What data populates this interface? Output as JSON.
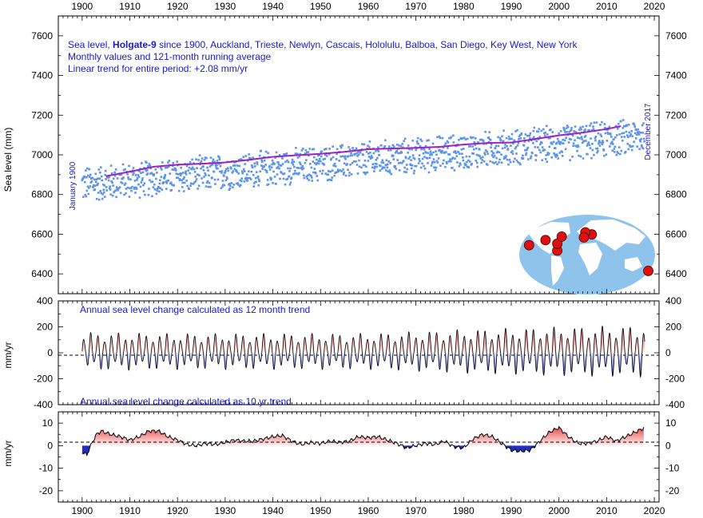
{
  "chart_data": [
    {
      "type": "scatter",
      "title_line1_pre": "Sea level, ",
      "title_line1_bold": "Holgate-9",
      "title_line1_post": " since 1900, Auckland, Trieste, Newlyn, Cascais, Hololulu, Balboa, San Diego, Key West, New York",
      "title_line2": "Monthly values and 121-month running average",
      "title_line3": "Linear trend for entire period: +2.08 mm/yr",
      "ylabel": "Sea level (mm)",
      "start_label": "January 1900",
      "end_label": "December 2017",
      "xlim": [
        1895,
        2021
      ],
      "ylim": [
        6300,
        7700
      ],
      "x_ticks": [
        "1900",
        "1910",
        "1920",
        "1930",
        "1940",
        "1950",
        "1960",
        "1970",
        "1980",
        "1990",
        "2000",
        "2010",
        "2020"
      ],
      "y_ticks": [
        "6400",
        "6600",
        "6800",
        "7000",
        "7200",
        "7400",
        "7600"
      ],
      "monthly_color": "#5b94e8",
      "average_color": "#a020c0",
      "running_average": {
        "x": [
          1905,
          1910,
          1915,
          1920,
          1925,
          1930,
          1935,
          1940,
          1945,
          1950,
          1955,
          1960,
          1965,
          1970,
          1975,
          1980,
          1985,
          1990,
          1995,
          2000,
          2005,
          2010,
          2013
        ],
        "y": [
          6893,
          6915,
          6940,
          6950,
          6955,
          6962,
          6975,
          6990,
          6998,
          7005,
          7015,
          7028,
          7032,
          7035,
          7040,
          7052,
          7060,
          7062,
          7080,
          7098,
          7112,
          7130,
          7145
        ]
      },
      "monthly_trend_mm_per_yr": 2.08,
      "monthly_start_level": 6850,
      "monthly_scatter_amplitude": 100
    },
    {
      "type": "area",
      "title": "Annual sea level change calculated as 12 month trend",
      "ylabel": "mm/yr",
      "ylim": [
        -400,
        400
      ],
      "y_ticks": [
        "400",
        "200",
        "0",
        "-200",
        "-400"
      ],
      "positive_color": "#e84a4a",
      "negative_color": "#2030c0",
      "oscillation_period_years": 1.45,
      "amplitude_mm_per_yr": [
        [
          1900,
          150
        ],
        [
          1920,
          140
        ],
        [
          1960,
          140
        ],
        [
          1980,
          170
        ],
        [
          2000,
          190
        ],
        [
          2017,
          200
        ]
      ]
    },
    {
      "type": "area",
      "title": "Annual sea level change calculated as 10 yr trend",
      "ylabel": "mm/yr",
      "ylim": [
        -25,
        15
      ],
      "y_ticks": [
        "10",
        "0",
        "-10",
        "-20"
      ],
      "positive_color": "#e84a4a",
      "negative_color": "#2030c0",
      "x": [
        1900,
        1901,
        1902,
        1903,
        1904,
        1906,
        1908,
        1910,
        1912,
        1914,
        1916,
        1918,
        1920,
        1922,
        1924,
        1926,
        1928,
        1930,
        1932,
        1934,
        1936,
        1938,
        1940,
        1942,
        1944,
        1946,
        1948,
        1950,
        1952,
        1954,
        1956,
        1958,
        1960,
        1962,
        1964,
        1966,
        1968,
        1970,
        1972,
        1974,
        1976,
        1978,
        1980,
        1982,
        1984,
        1986,
        1988,
        1990,
        1992,
        1994,
        1996,
        1998,
        2000,
        2002,
        2004,
        2006,
        2008,
        2010,
        2012,
        2014,
        2016,
        2018
      ],
      "y": [
        -3,
        -4,
        1,
        5,
        6.5,
        5,
        4,
        2.5,
        4,
        6.5,
        6.5,
        4,
        2.5,
        0.5,
        0,
        1,
        0.5,
        1.5,
        2.5,
        2,
        2,
        3,
        4,
        4.5,
        2,
        0.5,
        1.5,
        1,
        2,
        1.5,
        2,
        4,
        3.5,
        4,
        2.5,
        1,
        -1,
        0,
        1,
        0.5,
        2,
        -0.5,
        -1,
        3,
        5,
        4,
        1,
        -2,
        -2.5,
        -2,
        2,
        6,
        8,
        4,
        1,
        1,
        2,
        4,
        2,
        4,
        6,
        8
      ]
    }
  ],
  "map": {
    "ocean_color": "#8ec4ec",
    "land_color": "#ffffff",
    "marker_color": "#dd1111",
    "station_names": [
      "Auckland",
      "Trieste",
      "Newlyn",
      "Cascais",
      "Hololulu",
      "Balboa",
      "San Diego",
      "Key West",
      "New York"
    ],
    "station_lonlat": [
      [
        174.8,
        -36.8
      ],
      [
        13.8,
        45.6
      ],
      [
        -5.5,
        50.1
      ],
      [
        -9.4,
        38.7
      ],
      [
        -157.9,
        21.3
      ],
      [
        -79.6,
        9.0
      ],
      [
        -117.2,
        32.7
      ],
      [
        -81.8,
        24.6
      ],
      [
        -74.0,
        40.7
      ]
    ]
  }
}
